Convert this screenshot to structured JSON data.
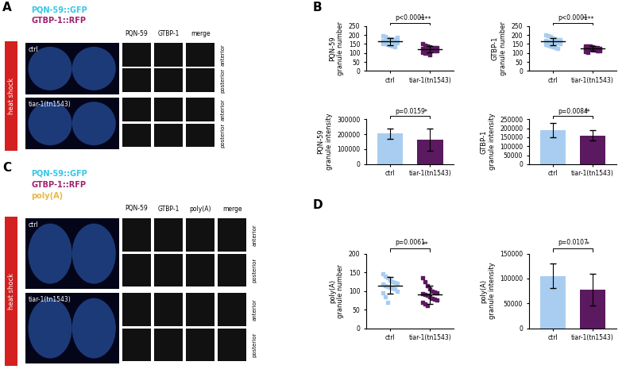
{
  "panel_labels": [
    "A",
    "B",
    "C",
    "D"
  ],
  "images": [
    {
      "heat_shock": "heat shock",
      "channels": [
        {
          "name": "PQN-59::GFP",
          "color": "#35c6e8"
        },
        {
          "name": "GTBP-1::RFP",
          "color": "#a0206e"
        }
      ],
      "columns": [
        "PQN-59",
        "GTBP-1",
        "merge"
      ],
      "rows": [
        {
          "name": "ctrl",
          "insets": [
            "anterior",
            "posterior"
          ]
        },
        {
          "name": "tiar-1(tn1543)",
          "insets": [
            "anterior",
            "posterior"
          ]
        }
      ]
    },
    {
      "heat_shock": "heat shock",
      "channels": [
        {
          "name": "PQN-59::GFP",
          "color": "#35c6e8"
        },
        {
          "name": "GTBP-1::RFP",
          "color": "#a0206e"
        },
        {
          "name": "poly(A)",
          "color": "#e8b840"
        }
      ],
      "columns": [
        "PQN-59",
        "GTBP-1",
        "poly(A)",
        "merge"
      ],
      "rows": [
        {
          "name": "ctrl",
          "insets": [
            "anterior",
            "posterior"
          ]
        },
        {
          "name": "tiar-1(tn1543)",
          "insets": [
            "anterior",
            "posterior"
          ]
        }
      ]
    }
  ],
  "chart_data": [
    {
      "type": "scatter",
      "ylabel": "PQN-59\ngranule number",
      "marker": "s",
      "categories": [
        "ctrl",
        "tiar-1(tn1543)"
      ],
      "colors": [
        "#a9cdf0",
        "#5b1a5f"
      ],
      "points": [
        [
          195,
          190,
          185,
          180,
          178,
          175,
          172,
          170,
          168,
          165,
          163,
          160,
          158,
          155,
          152,
          150,
          148,
          145,
          140,
          135,
          188,
          162
        ],
        [
          150,
          145,
          140,
          135,
          132,
          130,
          128,
          125,
          122,
          120,
          118,
          115,
          112,
          110,
          105,
          100,
          98,
          90
        ]
      ],
      "mean": [
        165,
        122
      ],
      "sd": [
        20,
        17
      ],
      "ylim": [
        0,
        250
      ],
      "yticks": [
        0,
        50,
        100,
        150,
        200,
        250
      ],
      "p_label": "p<0.0001",
      "stars": "****"
    },
    {
      "type": "scatter",
      "ylabel": "GTBP-1\ngranule number",
      "marker": "s",
      "categories": [
        "ctrl",
        "tiar-1(tn1543)"
      ],
      "colors": [
        "#a9cdf0",
        "#5b1a5f"
      ],
      "points": [
        [
          200,
          195,
          190,
          185,
          180,
          175,
          172,
          170,
          165,
          162,
          160,
          158,
          155,
          150,
          148,
          145,
          140,
          135,
          130,
          125,
          168
        ],
        [
          140,
          138,
          135,
          132,
          130,
          128,
          126,
          125,
          123,
          120,
          118,
          115,
          112,
          110,
          108,
          105,
          140,
          135
        ]
      ],
      "mean": [
        165,
        125
      ],
      "sd": [
        20,
        12
      ],
      "ylim": [
        0,
        250
      ],
      "yticks": [
        0,
        50,
        100,
        150,
        200,
        250
      ],
      "p_label": "p<0.0001",
      "stars": "****"
    },
    {
      "type": "bar",
      "ylabel": "PQN-59\ngranule intensity",
      "categories": [
        "ctrl",
        "tiar-1(tn1543)"
      ],
      "colors": [
        "#a9cdf0",
        "#5b1a5f"
      ],
      "values": [
        205000,
        165000
      ],
      "errors": [
        35000,
        75000
      ],
      "ylim": [
        0,
        300000
      ],
      "yticks": [
        0,
        100000,
        200000,
        300000
      ],
      "p_label": "p=0.0159",
      "stars": "*"
    },
    {
      "type": "bar",
      "ylabel": "GTBP-1\ngranule intensity",
      "categories": [
        "ctrl",
        "tiar-1(tn1543)"
      ],
      "colors": [
        "#a9cdf0",
        "#5b1a5f"
      ],
      "values": [
        190000,
        160000
      ],
      "errors": [
        40000,
        30000
      ],
      "ylim": [
        0,
        250000
      ],
      "yticks": [
        0,
        50000,
        100000,
        150000,
        200000,
        250000
      ],
      "p_label": "p=0.0084",
      "stars": "**"
    },
    {
      "type": "scatter",
      "ylabel": "poly(A)\ngranule number",
      "marker": "s",
      "categories": [
        "ctrl",
        "tiar-1(tn1543)"
      ],
      "colors": [
        "#a9cdf0",
        "#5b1a5f"
      ],
      "points": [
        [
          145,
          140,
          135,
          130,
          125,
          122,
          120,
          118,
          115,
          112,
          110,
          108,
          105,
          100,
          95,
          85,
          70,
          128
        ],
        [
          135,
          125,
          115,
          105,
          100,
          98,
          95,
          92,
          90,
          88,
          85,
          80,
          78,
          75,
          70,
          65,
          60
        ]
      ],
      "mean": [
        115,
        90
      ],
      "sd": [
        22,
        25
      ],
      "ylim": [
        0,
        200
      ],
      "yticks": [
        0,
        50,
        100,
        150,
        200
      ],
      "p_label": "p=0.0061",
      "stars": "**"
    },
    {
      "type": "bar",
      "ylabel": "poly(A)\ngranule intensity",
      "categories": [
        "ctrl",
        "tiar-1(tn1543)"
      ],
      "colors": [
        "#a9cdf0",
        "#5b1a5f"
      ],
      "values": [
        105000,
        78000
      ],
      "errors": [
        25000,
        32000
      ],
      "ylim": [
        0,
        150000
      ],
      "yticks": [
        0,
        50000,
        100000,
        150000
      ],
      "p_label": "p=0.0107",
      "stars": "*"
    }
  ]
}
